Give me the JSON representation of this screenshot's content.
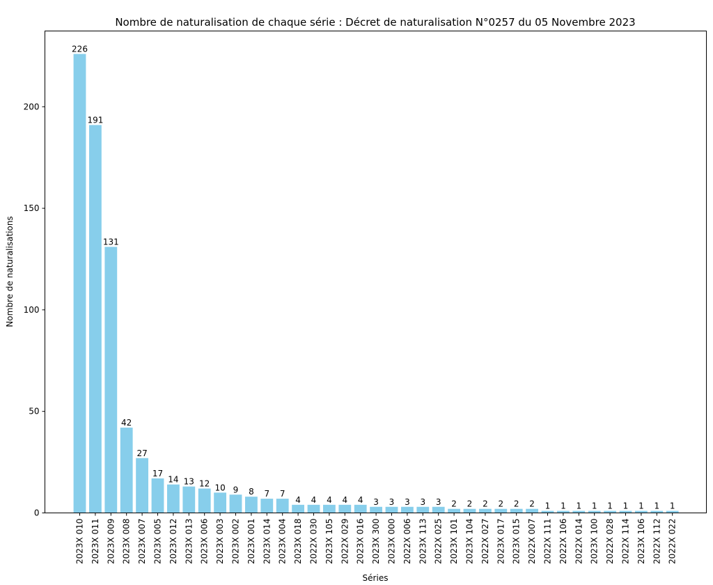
{
  "chart_data": {
    "type": "bar",
    "title": "Nombre de naturalisation de chaque série : Décret de naturalisation N°0257 du 05 Novembre 2023",
    "xlabel": "Séries",
    "ylabel": "Nombre de naturalisations",
    "categories": [
      "2023X 010",
      "2023X 011",
      "2023X 009",
      "2023X 008",
      "2023X 007",
      "2023X 005",
      "2023X 012",
      "2023X 013",
      "2023X 006",
      "2023X 003",
      "2023X 002",
      "2023X 001",
      "2023X 014",
      "2023X 004",
      "2023X 018",
      "2022X 030",
      "2023X 105",
      "2022X 029",
      "2023X 016",
      "2023X 300",
      "2023X 000",
      "2022X 006",
      "2023X 113",
      "2022X 025",
      "2023X 101",
      "2023X 104",
      "2022X 027",
      "2023X 017",
      "2023X 015",
      "2022X 007",
      "2022X 111",
      "2022X 106",
      "2022X 014",
      "2023X 100",
      "2022X 028",
      "2022X 114",
      "2023X 106",
      "2022X 112",
      "2022X 022"
    ],
    "values": [
      226,
      191,
      131,
      42,
      27,
      17,
      14,
      13,
      12,
      10,
      9,
      8,
      7,
      7,
      4,
      4,
      4,
      4,
      4,
      3,
      3,
      3,
      3,
      3,
      2,
      2,
      2,
      2,
      2,
      2,
      1,
      1,
      1,
      1,
      1,
      1,
      1,
      1,
      1
    ],
    "ylim": [
      0,
      237.3
    ],
    "yticks": [
      0,
      50,
      100,
      150,
      200
    ],
    "bar_color": "#87ceeb",
    "grid": false,
    "legend": "none"
  }
}
